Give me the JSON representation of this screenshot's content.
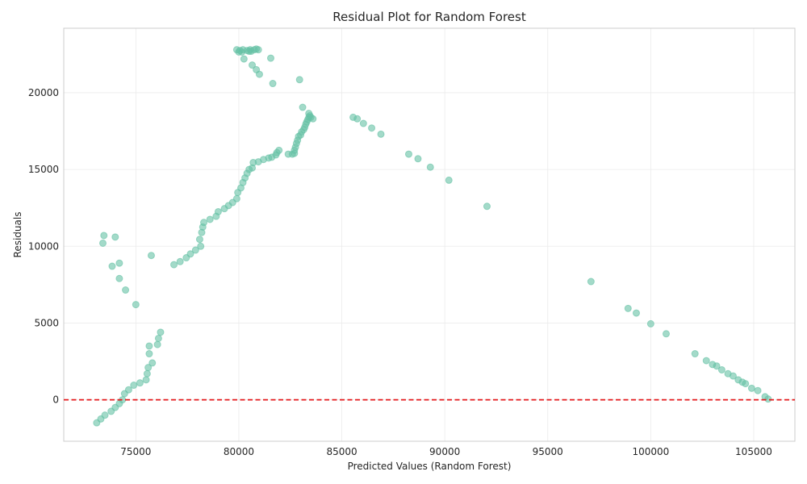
{
  "chart_data": {
    "type": "scatter",
    "title": "Residual Plot for Random Forest",
    "xlabel": "Predicted Values (Random Forest)",
    "ylabel": "Residuals",
    "xlim": [
      71500,
      107000
    ],
    "ylim": [
      -2700,
      24200
    ],
    "xticks": [
      75000,
      80000,
      85000,
      90000,
      95000,
      100000,
      105000
    ],
    "xtick_labels": [
      "75000",
      "80000",
      "85000",
      "90000",
      "95000",
      "100000",
      "105000"
    ],
    "yticks": [
      0,
      5000,
      10000,
      15000,
      20000
    ],
    "ytick_labels": [
      "0",
      "5000",
      "10000",
      "15000",
      "20000"
    ],
    "grid": true,
    "point_color": "#66c2a5",
    "reference_line": {
      "y": 0,
      "color": "#e41a1c",
      "style": "dashed"
    },
    "points": [
      [
        73100,
        -1500
      ],
      [
        73300,
        -1250
      ],
      [
        73500,
        -1000
      ],
      [
        73800,
        -750
      ],
      [
        74000,
        -500
      ],
      [
        74200,
        -250
      ],
      [
        74350,
        0
      ],
      [
        74450,
        400
      ],
      [
        74650,
        650
      ],
      [
        74900,
        950
      ],
      [
        75200,
        1100
      ],
      [
        75500,
        1300
      ],
      [
        75550,
        1700
      ],
      [
        75600,
        2100
      ],
      [
        75800,
        2400
      ],
      [
        75650,
        3000
      ],
      [
        75650,
        3500
      ],
      [
        76050,
        3600
      ],
      [
        76100,
        4000
      ],
      [
        76200,
        4400
      ],
      [
        73450,
        10700
      ],
      [
        73400,
        10200
      ],
      [
        74000,
        10600
      ],
      [
        73850,
        8700
      ],
      [
        74200,
        8900
      ],
      [
        74200,
        7900
      ],
      [
        74500,
        7150
      ],
      [
        75000,
        6200
      ],
      [
        75750,
        9400
      ],
      [
        76850,
        8800
      ],
      [
        77150,
        9000
      ],
      [
        77450,
        9250
      ],
      [
        77650,
        9500
      ],
      [
        77900,
        9750
      ],
      [
        78150,
        10000
      ],
      [
        78100,
        10450
      ],
      [
        78200,
        10900
      ],
      [
        78250,
        11250
      ],
      [
        78300,
        11550
      ],
      [
        78600,
        11750
      ],
      [
        78900,
        11950
      ],
      [
        79000,
        12250
      ],
      [
        79300,
        12450
      ],
      [
        79500,
        12650
      ],
      [
        79700,
        12850
      ],
      [
        79900,
        13100
      ],
      [
        79950,
        13500
      ],
      [
        80100,
        13800
      ],
      [
        80200,
        14150
      ],
      [
        80300,
        14450
      ],
      [
        80400,
        14750
      ],
      [
        80500,
        15000
      ],
      [
        80650,
        15100
      ],
      [
        80700,
        15450
      ],
      [
        80950,
        15500
      ],
      [
        81200,
        15650
      ],
      [
        81450,
        15750
      ],
      [
        81600,
        15800
      ],
      [
        81800,
        15950
      ],
      [
        81850,
        16100
      ],
      [
        81950,
        16250
      ],
      [
        82400,
        16000
      ],
      [
        82600,
        16000
      ],
      [
        82700,
        16050
      ],
      [
        82700,
        16250
      ],
      [
        82750,
        16450
      ],
      [
        82800,
        16700
      ],
      [
        82850,
        16900
      ],
      [
        82900,
        17150
      ],
      [
        83000,
        17250
      ],
      [
        83050,
        17450
      ],
      [
        83150,
        17600
      ],
      [
        83200,
        17750
      ],
      [
        83250,
        17950
      ],
      [
        83300,
        18100
      ],
      [
        83350,
        18250
      ],
      [
        83400,
        18400
      ],
      [
        83450,
        18500
      ],
      [
        83400,
        18650
      ],
      [
        83500,
        18400
      ],
      [
        83600,
        18300
      ],
      [
        83100,
        19050
      ],
      [
        79900,
        22800
      ],
      [
        80000,
        22650
      ],
      [
        80050,
        22750
      ],
      [
        80200,
        22800
      ],
      [
        80150,
        22650
      ],
      [
        80400,
        22750
      ],
      [
        80500,
        22700
      ],
      [
        80550,
        22800
      ],
      [
        80600,
        22700
      ],
      [
        80750,
        22800
      ],
      [
        80850,
        22850
      ],
      [
        80950,
        22800
      ],
      [
        80250,
        22200
      ],
      [
        80650,
        21800
      ],
      [
        80850,
        21500
      ],
      [
        81000,
        21200
      ],
      [
        81550,
        22250
      ],
      [
        81650,
        20600
      ],
      [
        82950,
        20850
      ],
      [
        85550,
        18400
      ],
      [
        85750,
        18300
      ],
      [
        86050,
        18000
      ],
      [
        86450,
        17700
      ],
      [
        86900,
        17300
      ],
      [
        88250,
        16000
      ],
      [
        88700,
        15700
      ],
      [
        89300,
        15150
      ],
      [
        90200,
        14300
      ],
      [
        92050,
        12600
      ],
      [
        97100,
        7700
      ],
      [
        98900,
        5950
      ],
      [
        99300,
        5650
      ],
      [
        100000,
        4950
      ],
      [
        100750,
        4300
      ],
      [
        102150,
        3000
      ],
      [
        102700,
        2550
      ],
      [
        103000,
        2300
      ],
      [
        103200,
        2200
      ],
      [
        103450,
        1950
      ],
      [
        103750,
        1700
      ],
      [
        104000,
        1550
      ],
      [
        104250,
        1300
      ],
      [
        104450,
        1150
      ],
      [
        104600,
        1050
      ],
      [
        104900,
        750
      ],
      [
        105200,
        600
      ],
      [
        105550,
        200
      ],
      [
        105700,
        50
      ]
    ]
  }
}
